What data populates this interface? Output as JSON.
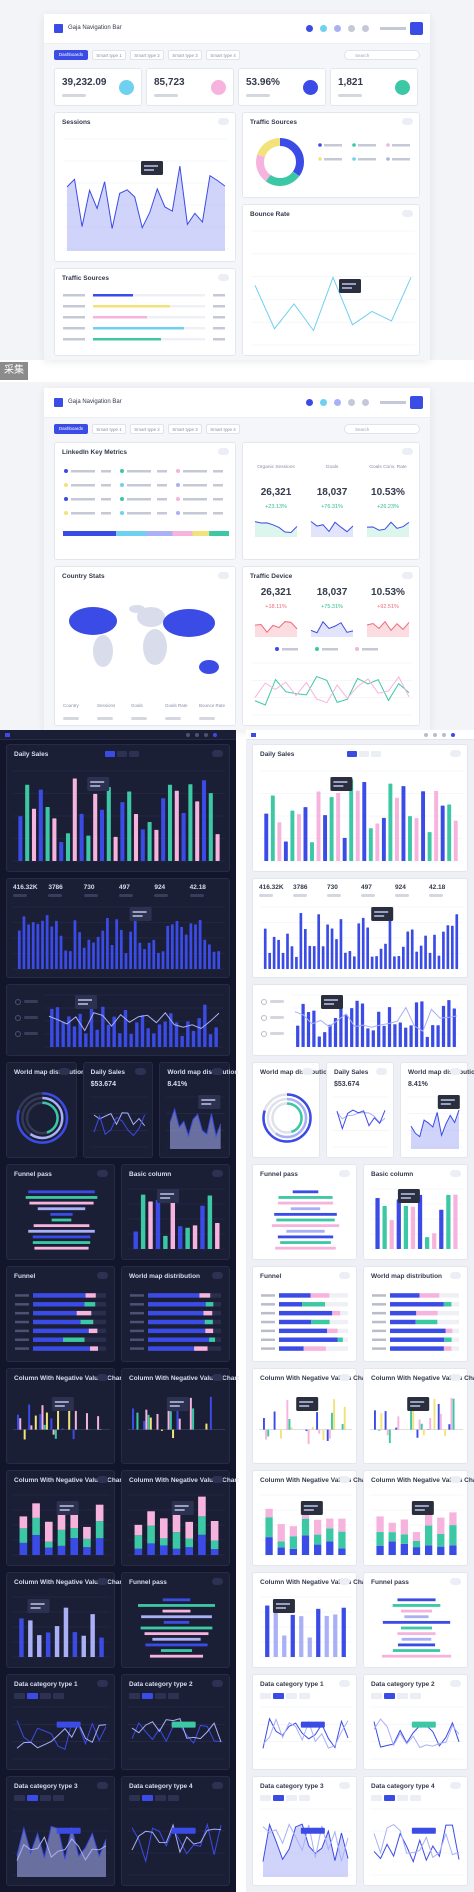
{
  "header": {
    "nav_title": "Gaja Navigation Bar",
    "tabs": [
      "Dashboards",
      "Smart type 1",
      "Smart type 2",
      "Smart type 3",
      "Smart type 4"
    ],
    "search": "Search"
  },
  "dashboard_1": {
    "stats": [
      "39,232.09",
      "85,723",
      "53.96%",
      "1,821"
    ],
    "cards": [
      "Sessions",
      "Traffic Sources",
      "Bounce Rate",
      "Traffic Sources"
    ]
  },
  "watermark": "采集",
  "dashboard_2": {
    "cards": [
      "LinkedIn Key Metrics",
      "Country Stats",
      "Traffic Device"
    ],
    "metric_headers": [
      "Organic Sessions",
      "Goals",
      "Goals Conv. Rate"
    ],
    "metrics": {
      "values": [
        "26,321",
        "18,037",
        "10.53%"
      ],
      "changes": [
        "+23.13%",
        "+76.31%",
        "+26.23%"
      ]
    },
    "device_metrics": {
      "values": [
        "26,321",
        "18,037",
        "10.53%"
      ],
      "changes": [
        "+18.11%",
        "+75.31%",
        "+92.51%"
      ]
    },
    "country_headers": [
      "Country",
      "Sessions",
      "Goals",
      "Goals Rate",
      "Bounce Rate"
    ]
  },
  "dashboard_3": {
    "title": "Daily Sales",
    "stats": [
      "416.32K",
      "3786",
      "730",
      "497",
      "924",
      "42.18"
    ],
    "card_values": [
      "$53.674",
      "8.41%"
    ],
    "cards": [
      "World map distribution",
      "Daily Sales",
      "World map distribution",
      "Funnel pass",
      "Basic column",
      "Funnel",
      "World map distribution",
      "Column With Negative Values Chart",
      "Column With Negative Values Chart",
      "Column With Negative Values Chart",
      "Column With Negative Values Chart",
      "Column With Negative Values Chart",
      "Funnel pass",
      "Data category type 1",
      "Data category type 2",
      "Data category type 3",
      "Data category type 4"
    ]
  }
}
